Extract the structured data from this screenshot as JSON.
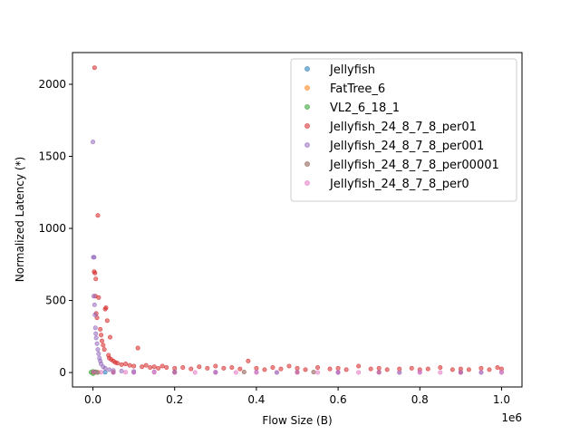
{
  "chart_data": {
    "type": "scatter",
    "title": "",
    "xlabel": "Flow Size (B)",
    "ylabel": "Normalized Latency (*)",
    "x_offset_text": "1e6",
    "xlim": [
      -0.05,
      1.05
    ],
    "ylim": [
      -100,
      2220
    ],
    "x_ticks": [
      0.0,
      0.2,
      0.4,
      0.6,
      0.8,
      1.0
    ],
    "x_tick_labels": [
      "0.0",
      "0.2",
      "0.4",
      "0.6",
      "0.8",
      "1.0"
    ],
    "y_ticks": [
      0,
      500,
      1000,
      1500,
      2000
    ],
    "y_tick_labels": [
      "0",
      "500",
      "1000",
      "1500",
      "2000"
    ],
    "grid": false,
    "legend_position": "top-right",
    "series": [
      {
        "name": "Jellyfish",
        "color": "#1f77b4",
        "points": [
          [
            0.002,
            2
          ],
          [
            0.01,
            1
          ],
          [
            0.03,
            2
          ],
          [
            0.05,
            1
          ],
          [
            0.1,
            2
          ],
          [
            0.2,
            1
          ],
          [
            0.3,
            1
          ],
          [
            0.45,
            1
          ],
          [
            0.6,
            1
          ],
          [
            0.75,
            1
          ],
          [
            0.9,
            1
          ],
          [
            0.95,
            1
          ]
        ]
      },
      {
        "name": "FatTree_6",
        "color": "#ff7f0e",
        "points": [
          [
            0.001,
            1
          ],
          [
            0.003,
            2
          ],
          [
            0.005,
            1
          ],
          [
            0.008,
            3
          ],
          [
            0.01,
            1
          ],
          [
            0.012,
            2
          ]
        ]
      },
      {
        "name": "VL2_6_18_1",
        "color": "#2ca02c",
        "points": [
          [
            -0.005,
            2
          ],
          [
            0.0,
            8
          ],
          [
            0.0,
            -8
          ],
          [
            0.003,
            1
          ],
          [
            0.008,
            3
          ],
          [
            0.012,
            1
          ],
          [
            0.006,
            5
          ]
        ]
      },
      {
        "name": "Jellyfish_24_8_7_8_per01",
        "color": "#d62728",
        "points": [
          [
            0.004,
            2115
          ],
          [
            0.003,
            700
          ],
          [
            0.005,
            690
          ],
          [
            0.007,
            650
          ],
          [
            0.006,
            530
          ],
          [
            0.008,
            410
          ],
          [
            0.01,
            380
          ],
          [
            0.012,
            1090
          ],
          [
            0.014,
            520
          ],
          [
            0.018,
            300
          ],
          [
            0.02,
            260
          ],
          [
            0.022,
            220
          ],
          [
            0.025,
            190
          ],
          [
            0.028,
            160
          ],
          [
            0.03,
            440
          ],
          [
            0.032,
            450
          ],
          [
            0.035,
            360
          ],
          [
            0.038,
            120
          ],
          [
            0.04,
            100
          ],
          [
            0.042,
            245
          ],
          [
            0.045,
            90
          ],
          [
            0.05,
            80
          ],
          [
            0.055,
            70
          ],
          [
            0.06,
            65
          ],
          [
            0.07,
            55
          ],
          [
            0.08,
            60
          ],
          [
            0.09,
            50
          ],
          [
            0.1,
            45
          ],
          [
            0.11,
            170
          ],
          [
            0.12,
            40
          ],
          [
            0.13,
            50
          ],
          [
            0.14,
            35
          ],
          [
            0.15,
            40
          ],
          [
            0.16,
            30
          ],
          [
            0.17,
            45
          ],
          [
            0.18,
            35
          ],
          [
            0.2,
            30
          ],
          [
            0.22,
            35
          ],
          [
            0.24,
            25
          ],
          [
            0.26,
            40
          ],
          [
            0.28,
            30
          ],
          [
            0.3,
            45
          ],
          [
            0.32,
            30
          ],
          [
            0.34,
            35
          ],
          [
            0.36,
            25
          ],
          [
            0.38,
            80
          ],
          [
            0.4,
            30
          ],
          [
            0.42,
            20
          ],
          [
            0.44,
            35
          ],
          [
            0.46,
            25
          ],
          [
            0.48,
            45
          ],
          [
            0.5,
            30
          ],
          [
            0.52,
            20
          ],
          [
            0.55,
            35
          ],
          [
            0.58,
            25
          ],
          [
            0.6,
            30
          ],
          [
            0.62,
            20
          ],
          [
            0.65,
            45
          ],
          [
            0.68,
            25
          ],
          [
            0.7,
            30
          ],
          [
            0.72,
            20
          ],
          [
            0.75,
            25
          ],
          [
            0.78,
            30
          ],
          [
            0.8,
            20
          ],
          [
            0.82,
            25
          ],
          [
            0.85,
            35
          ],
          [
            0.88,
            20
          ],
          [
            0.9,
            25
          ],
          [
            0.92,
            20
          ],
          [
            0.95,
            30
          ],
          [
            0.97,
            20
          ],
          [
            0.99,
            35
          ],
          [
            1.0,
            25
          ]
        ]
      },
      {
        "name": "Jellyfish_24_8_7_8_per001",
        "color": "#9467bd",
        "points": [
          [
            0.0,
            1600
          ],
          [
            0.001,
            800
          ],
          [
            0.003,
            800
          ],
          [
            0.002,
            530
          ],
          [
            0.004,
            470
          ],
          [
            0.005,
            400
          ],
          [
            0.006,
            310
          ],
          [
            0.007,
            270
          ],
          [
            0.008,
            240
          ],
          [
            0.01,
            200
          ],
          [
            0.012,
            160
          ],
          [
            0.014,
            130
          ],
          [
            0.016,
            100
          ],
          [
            0.018,
            80
          ],
          [
            0.02,
            60
          ],
          [
            0.025,
            40
          ],
          [
            0.03,
            30
          ],
          [
            0.04,
            20
          ],
          [
            0.05,
            15
          ],
          [
            0.07,
            10
          ],
          [
            0.1,
            8
          ],
          [
            0.15,
            5
          ],
          [
            0.2,
            5
          ],
          [
            0.3,
            3
          ],
          [
            0.4,
            3
          ],
          [
            0.5,
            2
          ],
          [
            0.6,
            2
          ],
          [
            0.7,
            2
          ],
          [
            0.8,
            2
          ],
          [
            0.9,
            2
          ],
          [
            1.0,
            2
          ]
        ]
      },
      {
        "name": "Jellyfish_24_8_7_8_per00001",
        "color": "#8c564b",
        "points": [
          [
            0.002,
            3
          ],
          [
            0.05,
            2
          ],
          [
            0.2,
            3
          ],
          [
            0.37,
            4
          ],
          [
            0.5,
            2
          ],
          [
            0.54,
            3
          ],
          [
            0.7,
            2
          ],
          [
            0.9,
            2
          ]
        ]
      },
      {
        "name": "Jellyfish_24_8_7_8_per0",
        "color": "#e377c2",
        "points": [
          [
            0.001,
            3
          ],
          [
            0.01,
            2
          ],
          [
            0.02,
            2
          ],
          [
            0.05,
            1
          ],
          [
            0.08,
            2
          ],
          [
            0.1,
            1
          ],
          [
            0.15,
            1
          ],
          [
            0.2,
            1
          ],
          [
            0.25,
            1
          ],
          [
            0.3,
            1
          ],
          [
            0.35,
            1
          ],
          [
            0.4,
            1
          ],
          [
            0.45,
            1
          ],
          [
            0.5,
            1
          ],
          [
            0.55,
            1
          ],
          [
            0.6,
            1
          ],
          [
            0.65,
            1
          ],
          [
            0.7,
            1
          ],
          [
            0.75,
            1
          ],
          [
            0.8,
            1
          ],
          [
            0.85,
            1
          ],
          [
            0.9,
            1
          ],
          [
            0.95,
            1
          ],
          [
            1.0,
            1
          ]
        ]
      }
    ]
  }
}
